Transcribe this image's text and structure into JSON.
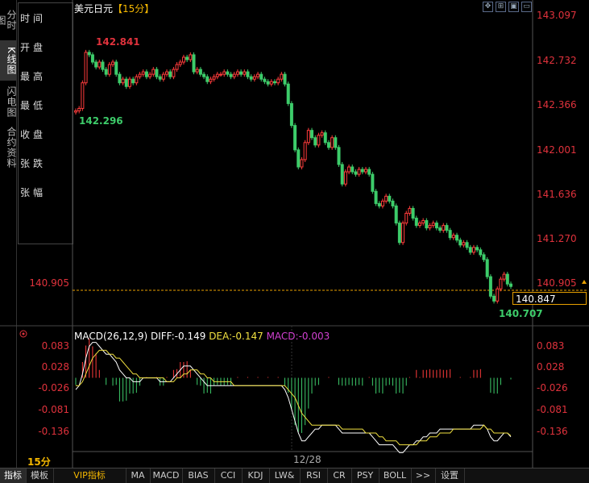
{
  "left_tabs": [
    {
      "label": "分时图",
      "active": false
    },
    {
      "label": "K线图",
      "active": true
    },
    {
      "label": "闪电图",
      "active": false
    },
    {
      "label": "合约资料",
      "active": false
    }
  ],
  "info_panel": [
    "时间",
    "开盘",
    "最高",
    "最低",
    "收盘",
    "张跌",
    "张幅"
  ],
  "title": {
    "name": "美元日元",
    "period": "【15分】"
  },
  "toolbar_icons": [
    "crosshair-icon",
    "fit-icon",
    "image-icon",
    "window-icon"
  ],
  "price_axis": [
    "143.097",
    "142.732",
    "142.366",
    "142.001",
    "141.636",
    "141.270",
    "140.905"
  ],
  "current_price": "140.847",
  "ref_price_left": "140.905",
  "annotations": {
    "high": "142.841",
    "low_first": "142.296",
    "low_last": "140.707"
  },
  "macd": {
    "name": "MACD(26,12,9)",
    "diff": "DIFF:-0.149",
    "dea": "DEA:-0.147",
    "macd": "MACD:-0.003",
    "axis": [
      "0.083",
      "0.028",
      "-0.026",
      "-0.081",
      "-0.136"
    ]
  },
  "period_label": "15分",
  "date_label": "12/28",
  "bottom_tabs": [
    "指标",
    "模板",
    "VIP指标",
    "MA",
    "MACD",
    "BIAS",
    "CCI",
    "KDJ",
    "LW&",
    "RSI",
    "CR",
    "PSY",
    "BOLL",
    ">>",
    "设置"
  ],
  "colors": {
    "up": "#ff3b3b",
    "down": "#3dcc6a",
    "diff": "#ffffff",
    "dea": "#f0e040",
    "macd": "#d040d0"
  },
  "chart_data": {
    "type": "candlestick",
    "title": "美元日元【15分】",
    "ylim": [
      140.65,
      143.097
    ],
    "closes": [
      142.32,
      142.34,
      142.55,
      142.8,
      142.78,
      142.72,
      142.68,
      142.72,
      142.66,
      142.62,
      142.7,
      142.72,
      142.62,
      142.55,
      142.58,
      142.52,
      142.58,
      142.55,
      142.6,
      142.62,
      142.64,
      142.6,
      142.62,
      142.66,
      142.6,
      142.58,
      142.62,
      142.64,
      142.6,
      142.66,
      142.7,
      142.72,
      142.76,
      142.74,
      142.78,
      142.64,
      142.66,
      142.62,
      142.6,
      142.56,
      142.58,
      142.6,
      142.62,
      142.62,
      142.64,
      142.62,
      142.6,
      142.62,
      142.64,
      142.62,
      142.64,
      142.6,
      142.58,
      142.6,
      142.62,
      142.58,
      142.56,
      142.54,
      142.56,
      142.55,
      142.58,
      142.62,
      142.54,
      142.38,
      142.2,
      142.0,
      141.86,
      141.92,
      142.06,
      142.16,
      142.1,
      142.04,
      142.12,
      142.14,
      142.06,
      142.02,
      142.1,
      142.02,
      141.88,
      141.72,
      141.82,
      141.86,
      141.82,
      141.8,
      141.84,
      141.82,
      141.84,
      141.8,
      141.66,
      141.56,
      141.54,
      141.58,
      141.62,
      141.58,
      141.54,
      141.4,
      141.24,
      141.4,
      141.48,
      141.52,
      141.44,
      141.38,
      141.4,
      141.42,
      141.36,
      141.38,
      141.4,
      141.36,
      141.34,
      141.38,
      141.34,
      141.28,
      141.3,
      141.26,
      141.22,
      141.24,
      141.2,
      141.16,
      141.2,
      141.18,
      141.14,
      141.1,
      140.96,
      140.8,
      140.76,
      140.86,
      140.94,
      140.98,
      140.9,
      140.88
    ],
    "diff": [
      -0.03,
      -0.02,
      0.01,
      0.05,
      0.08,
      0.09,
      0.09,
      0.08,
      0.07,
      0.06,
      0.06,
      0.05,
      0.04,
      0.02,
      0.01,
      0.0,
      0.0,
      -0.01,
      -0.01,
      -0.01,
      0.0,
      0.0,
      0.0,
      0.0,
      0.0,
      -0.01,
      -0.01,
      -0.01,
      -0.01,
      0.0,
      0.01,
      0.02,
      0.03,
      0.03,
      0.03,
      0.02,
      0.01,
      0.0,
      -0.01,
      -0.02,
      -0.02,
      -0.02,
      -0.02,
      -0.02,
      -0.02,
      -0.02,
      -0.02,
      -0.02,
      -0.02,
      -0.02,
      -0.02,
      -0.02,
      -0.02,
      -0.02,
      -0.02,
      -0.02,
      -0.02,
      -0.02,
      -0.02,
      -0.02,
      -0.02,
      -0.02,
      -0.03,
      -0.05,
      -0.08,
      -0.11,
      -0.14,
      -0.16,
      -0.16,
      -0.15,
      -0.14,
      -0.13,
      -0.13,
      -0.12,
      -0.12,
      -0.12,
      -0.12,
      -0.12,
      -0.13,
      -0.14,
      -0.14,
      -0.14,
      -0.14,
      -0.14,
      -0.14,
      -0.14,
      -0.14,
      -0.14,
      -0.15,
      -0.16,
      -0.17,
      -0.17,
      -0.17,
      -0.17,
      -0.17,
      -0.18,
      -0.19,
      -0.19,
      -0.18,
      -0.17,
      -0.17,
      -0.16,
      -0.16,
      -0.15,
      -0.15,
      -0.14,
      -0.14,
      -0.14,
      -0.13,
      -0.13,
      -0.13,
      -0.13,
      -0.13,
      -0.13,
      -0.13,
      -0.13,
      -0.13,
      -0.13,
      -0.12,
      -0.12,
      -0.12,
      -0.12,
      -0.13,
      -0.15,
      -0.16,
      -0.16,
      -0.15,
      -0.14,
      -0.14,
      -0.15
    ],
    "dea": [
      -0.02,
      -0.02,
      -0.01,
      0.01,
      0.03,
      0.05,
      0.06,
      0.07,
      0.07,
      0.07,
      0.06,
      0.06,
      0.05,
      0.05,
      0.04,
      0.03,
      0.02,
      0.01,
      0.01,
      0.0,
      0.0,
      0.0,
      0.0,
      0.0,
      0.0,
      0.0,
      0.0,
      -0.01,
      -0.01,
      -0.01,
      0.0,
      0.0,
      0.01,
      0.01,
      0.02,
      0.02,
      0.02,
      0.01,
      0.01,
      0.0,
      0.0,
      -0.01,
      -0.01,
      -0.01,
      -0.01,
      -0.01,
      -0.01,
      -0.02,
      -0.02,
      -0.02,
      -0.02,
      -0.02,
      -0.02,
      -0.02,
      -0.02,
      -0.02,
      -0.02,
      -0.02,
      -0.02,
      -0.02,
      -0.02,
      -0.02,
      -0.02,
      -0.03,
      -0.04,
      -0.05,
      -0.07,
      -0.09,
      -0.1,
      -0.11,
      -0.12,
      -0.12,
      -0.12,
      -0.12,
      -0.12,
      -0.12,
      -0.12,
      -0.12,
      -0.12,
      -0.13,
      -0.13,
      -0.13,
      -0.13,
      -0.13,
      -0.13,
      -0.13,
      -0.14,
      -0.14,
      -0.14,
      -0.14,
      -0.15,
      -0.15,
      -0.16,
      -0.16,
      -0.16,
      -0.16,
      -0.17,
      -0.17,
      -0.17,
      -0.17,
      -0.17,
      -0.17,
      -0.16,
      -0.16,
      -0.16,
      -0.15,
      -0.15,
      -0.15,
      -0.14,
      -0.14,
      -0.14,
      -0.14,
      -0.13,
      -0.13,
      -0.13,
      -0.13,
      -0.13,
      -0.13,
      -0.13,
      -0.13,
      -0.13,
      -0.12,
      -0.13,
      -0.13,
      -0.14,
      -0.14,
      -0.14,
      -0.14,
      -0.14,
      -0.147
    ]
  }
}
